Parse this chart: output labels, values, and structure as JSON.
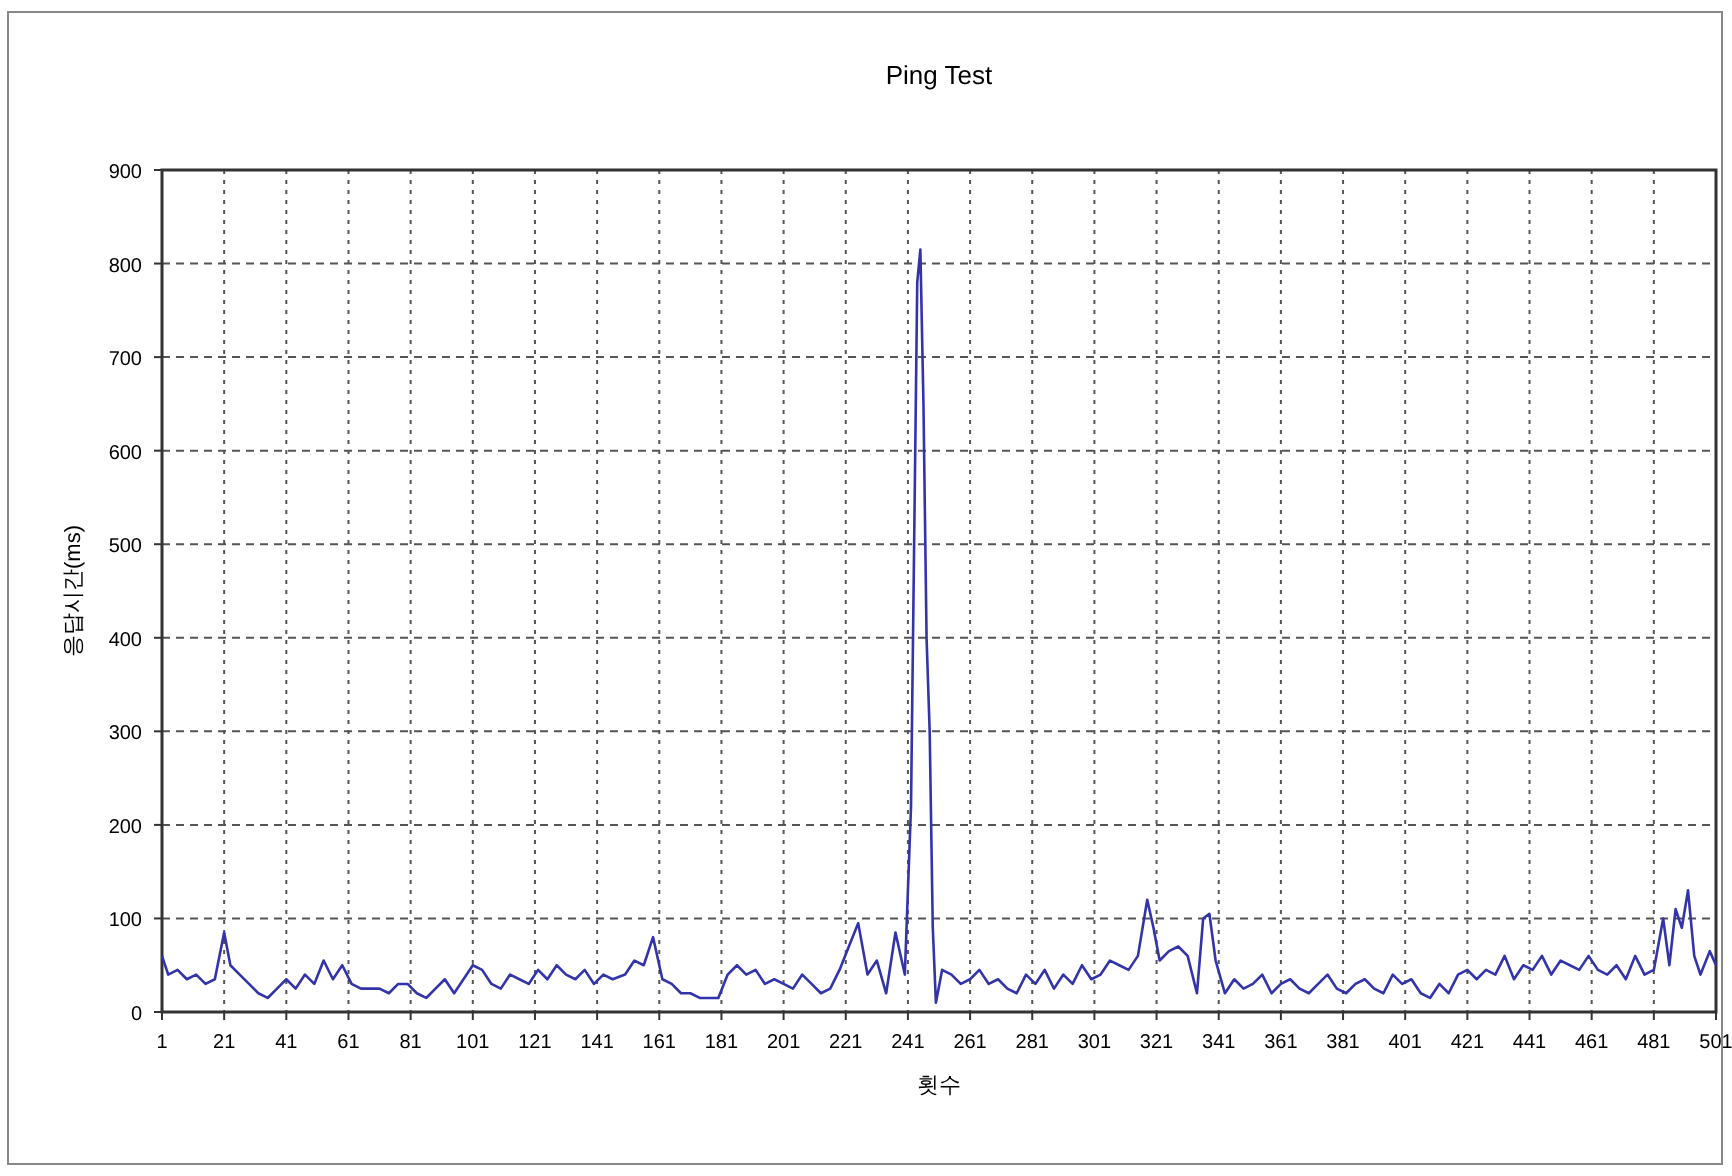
{
  "chart_data": {
    "type": "line",
    "title": "Ping Test",
    "xlabel": "횟수",
    "ylabel": "응답시간(ms)",
    "xlim": [
      1,
      501
    ],
    "xticks": [
      1,
      21,
      41,
      61,
      81,
      101,
      121,
      141,
      161,
      181,
      201,
      221,
      241,
      261,
      281,
      301,
      321,
      341,
      361,
      381,
      401,
      421,
      441,
      461,
      481,
      501
    ],
    "ylim": [
      0,
      900
    ],
    "yticks": [
      0,
      100,
      200,
      300,
      400,
      500,
      600,
      700,
      800,
      900
    ],
    "grid": true,
    "line_style": "solid",
    "series": [
      {
        "color": "#3333aa",
        "x": [
          1,
          3,
          6,
          9,
          12,
          15,
          18,
          21,
          23,
          26,
          29,
          32,
          35,
          38,
          41,
          44,
          47,
          50,
          53,
          56,
          59,
          62,
          65,
          68,
          71,
          74,
          77,
          80,
          83,
          86,
          89,
          92,
          95,
          98,
          101,
          104,
          107,
          110,
          113,
          116,
          119,
          122,
          125,
          128,
          131,
          134,
          137,
          140,
          143,
          146,
          150,
          153,
          156,
          159,
          162,
          165,
          168,
          171,
          174,
          177,
          180,
          183,
          186,
          189,
          192,
          195,
          198,
          201,
          204,
          207,
          210,
          213,
          216,
          219,
          222,
          225,
          228,
          231,
          234,
          237,
          240,
          242,
          244,
          245,
          246,
          247,
          248,
          249,
          250,
          252,
          255,
          258,
          261,
          264,
          267,
          270,
          273,
          276,
          279,
          282,
          285,
          288,
          291,
          294,
          297,
          300,
          303,
          306,
          309,
          312,
          315,
          318,
          320,
          322,
          325,
          328,
          331,
          334,
          336,
          338,
          340,
          343,
          346,
          349,
          352,
          355,
          358,
          361,
          364,
          367,
          370,
          373,
          376,
          379,
          382,
          385,
          388,
          391,
          394,
          397,
          400,
          403,
          406,
          409,
          412,
          415,
          418,
          421,
          424,
          427,
          430,
          433,
          436,
          439,
          442,
          445,
          448,
          451,
          454,
          457,
          460,
          463,
          466,
          469,
          472,
          475,
          478,
          481,
          484,
          486,
          488,
          490,
          492,
          494,
          496,
          499,
          501
        ],
        "values": [
          60,
          40,
          45,
          35,
          40,
          30,
          35,
          85,
          50,
          40,
          30,
          20,
          15,
          25,
          35,
          25,
          40,
          30,
          55,
          35,
          50,
          30,
          25,
          25,
          25,
          20,
          30,
          30,
          20,
          15,
          25,
          35,
          20,
          35,
          50,
          45,
          30,
          25,
          40,
          35,
          30,
          45,
          35,
          50,
          40,
          35,
          45,
          30,
          40,
          35,
          40,
          55,
          50,
          80,
          35,
          30,
          20,
          20,
          15,
          15,
          15,
          40,
          50,
          40,
          45,
          30,
          35,
          30,
          25,
          40,
          30,
          20,
          25,
          45,
          70,
          95,
          40,
          55,
          20,
          85,
          40,
          220,
          780,
          815,
          650,
          400,
          300,
          90,
          10,
          45,
          40,
          30,
          35,
          45,
          30,
          35,
          25,
          20,
          40,
          30,
          45,
          25,
          40,
          30,
          50,
          35,
          40,
          55,
          50,
          45,
          60,
          120,
          90,
          55,
          65,
          70,
          60,
          20,
          100,
          105,
          55,
          20,
          35,
          25,
          30,
          40,
          20,
          30,
          35,
          25,
          20,
          30,
          40,
          25,
          20,
          30,
          35,
          25,
          20,
          40,
          30,
          35,
          20,
          15,
          30,
          20,
          40,
          45,
          35,
          45,
          40,
          60,
          35,
          50,
          45,
          60,
          40,
          55,
          50,
          45,
          60,
          45,
          40,
          50,
          35,
          60,
          40,
          45,
          100,
          50,
          110,
          90,
          130,
          60,
          40,
          65,
          50
        ]
      }
    ]
  }
}
